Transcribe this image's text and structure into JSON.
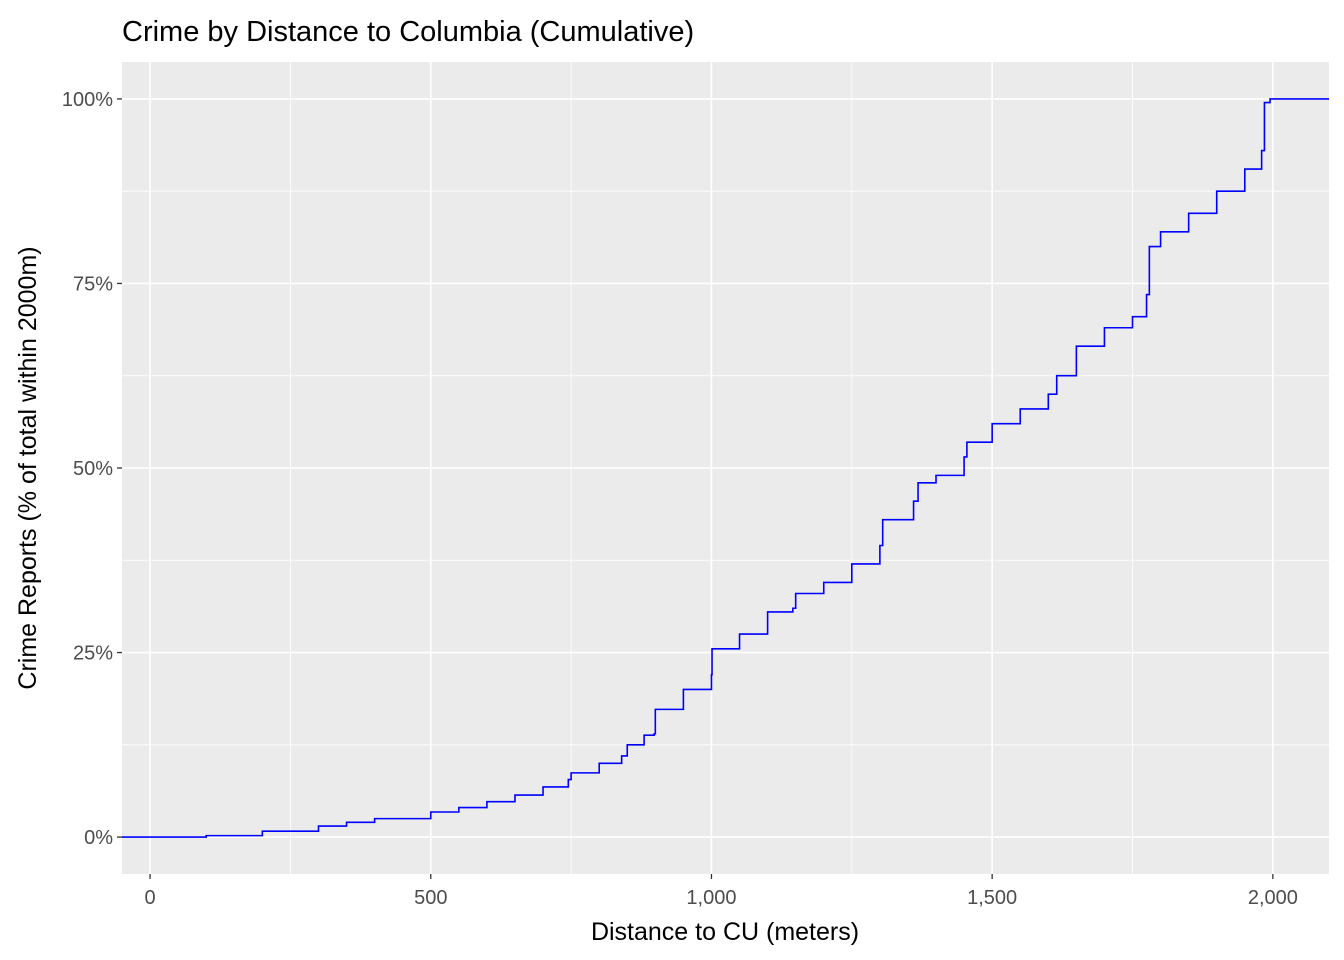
{
  "chart_data": {
    "type": "line",
    "step": true,
    "title": "Crime by Distance to Columbia (Cumulative)",
    "xlabel": "Distance to CU (meters)",
    "ylabel": "Crime Reports (% of total within 2000m)",
    "xlim": [
      -50,
      2100
    ],
    "ylim": [
      -0.05,
      1.05
    ],
    "x_ticks": [
      0,
      500,
      1000,
      1500,
      2000
    ],
    "x_tick_labels": [
      "0",
      "500",
      "1,000",
      "1,500",
      "2,000"
    ],
    "y_ticks": [
      0,
      0.25,
      0.5,
      0.75,
      1.0
    ],
    "y_tick_labels": [
      "0%",
      "25%",
      "50%",
      "75%",
      "100%"
    ],
    "grid": true,
    "line_color": "#0000ff",
    "panel_color": "#ebebeb",
    "series": [
      {
        "x": [
          -50,
          0,
          100,
          200,
          300,
          350,
          400,
          500,
          550,
          600,
          650,
          700,
          745,
          750,
          800,
          840,
          850,
          880,
          898,
          900,
          950,
          1000,
          1001,
          1050,
          1100,
          1145,
          1150,
          1200,
          1250,
          1300,
          1305,
          1360,
          1368,
          1400,
          1450,
          1455,
          1500,
          1550,
          1600,
          1615,
          1650,
          1700,
          1750,
          1775,
          1780,
          1800,
          1850,
          1900,
          1950,
          1980,
          1985,
          1995,
          2100
        ],
        "y": [
          0,
          0,
          0.002,
          0.008,
          0.015,
          0.02,
          0.025,
          0.034,
          0.04,
          0.048,
          0.057,
          0.068,
          0.078,
          0.087,
          0.1,
          0.11,
          0.125,
          0.138,
          0.14,
          0.173,
          0.2,
          0.22,
          0.255,
          0.275,
          0.305,
          0.31,
          0.33,
          0.345,
          0.37,
          0.395,
          0.43,
          0.455,
          0.48,
          0.49,
          0.515,
          0.535,
          0.56,
          0.58,
          0.6,
          0.625,
          0.665,
          0.69,
          0.705,
          0.735,
          0.8,
          0.82,
          0.845,
          0.875,
          0.905,
          0.93,
          0.995,
          1.0,
          1.0
        ]
      }
    ]
  }
}
